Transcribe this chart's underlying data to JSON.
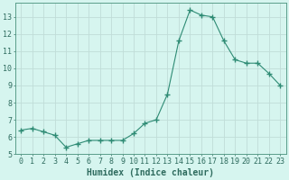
{
  "x": [
    0,
    1,
    2,
    3,
    4,
    5,
    6,
    7,
    8,
    9,
    10,
    11,
    12,
    13,
    14,
    15,
    16,
    17,
    18,
    19,
    20,
    21,
    22,
    23
  ],
  "y": [
    6.4,
    6.5,
    6.3,
    6.1,
    5.4,
    5.6,
    5.8,
    5.8,
    5.8,
    5.8,
    6.2,
    6.8,
    7.0,
    8.5,
    11.6,
    13.4,
    13.1,
    13.0,
    11.6,
    10.5,
    10.3,
    10.3,
    9.7,
    9.0
  ],
  "line_color": "#2e8b74",
  "marker": "+",
  "marker_size": 4,
  "bg_color": "#d6f5ef",
  "grid_color": "#c0ddd8",
  "xlabel": "Humidex (Indice chaleur)",
  "xlim": [
    -0.5,
    23.5
  ],
  "ylim": [
    5,
    13.8
  ],
  "yticks": [
    5,
    6,
    7,
    8,
    9,
    10,
    11,
    12,
    13
  ],
  "xticks": [
    0,
    1,
    2,
    3,
    4,
    5,
    6,
    7,
    8,
    9,
    10,
    11,
    12,
    13,
    14,
    15,
    16,
    17,
    18,
    19,
    20,
    21,
    22,
    23
  ],
  "tick_label_fontsize": 6,
  "xlabel_fontsize": 7,
  "tick_color": "#2e6b5e",
  "spine_color": "#5a9e8a"
}
